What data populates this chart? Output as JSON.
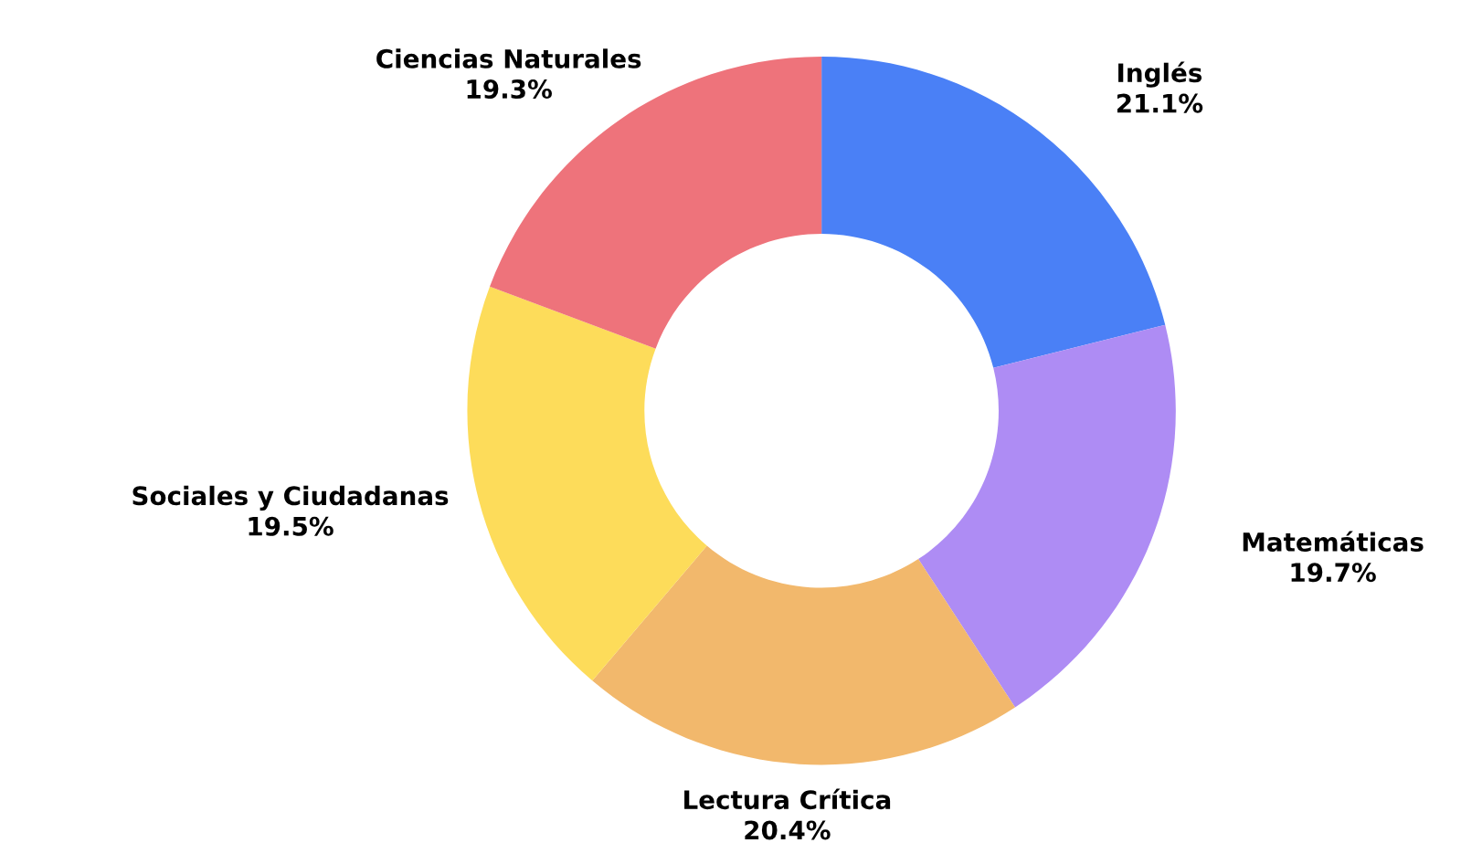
{
  "chart_data": {
    "type": "donut",
    "categories": [
      "Inglés",
      "Matemáticas",
      "Lectura Crítica",
      "Sociales y Ciudadanas",
      "Ciencias Naturales"
    ],
    "values": [
      21.1,
      19.7,
      20.4,
      19.5,
      19.3
    ],
    "colors": [
      "#4a80f6",
      "#ae8cf4",
      "#f2b86c",
      "#fddc5a",
      "#ee737b"
    ],
    "value_labels": [
      "21.1%",
      "19.7%",
      "20.4%",
      "19.5%",
      "19.3%"
    ],
    "legend": false
  }
}
